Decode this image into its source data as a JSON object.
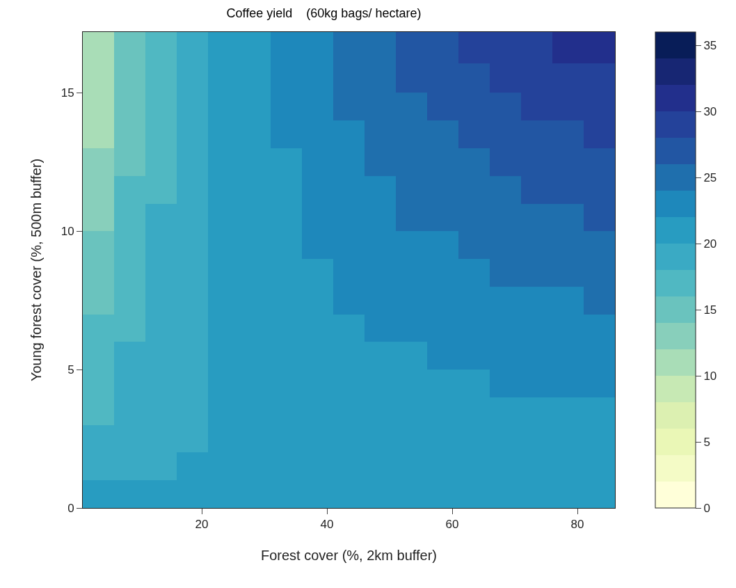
{
  "chart_data": {
    "type": "heatmap",
    "title": "Coffee yield    (60kg bags/ hectare)",
    "xlabel": "Forest cover (%, 2km buffer)",
    "ylabel": "Young forest cover (%, 500m buffer)",
    "x": [
      3.5,
      8.5,
      13.5,
      18.5,
      23.5,
      28.5,
      33.5,
      38.5,
      43.5,
      48.5,
      53.5,
      58.5,
      63.5,
      68.5,
      73.5,
      78.5,
      83.5
    ],
    "y": [
      16.65,
      15.5,
      14.5,
      13.5,
      12.5,
      11.5,
      10.5,
      9.5,
      8.5,
      7.5,
      6.5,
      5.5,
      4.5,
      3.5,
      2.5,
      1.5,
      0.5
    ],
    "cells": [
      [
        11,
        15,
        17,
        19,
        21,
        21,
        23,
        23,
        25,
        25,
        27,
        27,
        29,
        29,
        29,
        31,
        31
      ],
      [
        11,
        15,
        17,
        19,
        21,
        21,
        23,
        23,
        25,
        25,
        27,
        27,
        27,
        29,
        29,
        29,
        29
      ],
      [
        11,
        15,
        17,
        19,
        21,
        21,
        23,
        23,
        25,
        25,
        25,
        27,
        27,
        27,
        29,
        29,
        29
      ],
      [
        11,
        15,
        17,
        19,
        21,
        21,
        23,
        23,
        23,
        25,
        25,
        25,
        27,
        27,
        27,
        27,
        29
      ],
      [
        13,
        15,
        17,
        19,
        21,
        21,
        21,
        23,
        23,
        25,
        25,
        25,
        25,
        27,
        27,
        27,
        27
      ],
      [
        13,
        17,
        17,
        19,
        21,
        21,
        21,
        23,
        23,
        23,
        25,
        25,
        25,
        25,
        27,
        27,
        27
      ],
      [
        13,
        17,
        19,
        19,
        21,
        21,
        21,
        23,
        23,
        23,
        25,
        25,
        25,
        25,
        25,
        25,
        27
      ],
      [
        15,
        17,
        19,
        19,
        21,
        21,
        21,
        23,
        23,
        23,
        23,
        23,
        25,
        25,
        25,
        25,
        25
      ],
      [
        15,
        17,
        19,
        19,
        21,
        21,
        21,
        21,
        23,
        23,
        23,
        23,
        23,
        25,
        25,
        25,
        25
      ],
      [
        15,
        17,
        19,
        19,
        21,
        21,
        21,
        21,
        23,
        23,
        23,
        23,
        23,
        23,
        23,
        23,
        25
      ],
      [
        17,
        17,
        19,
        19,
        21,
        21,
        21,
        21,
        21,
        23,
        23,
        23,
        23,
        23,
        23,
        23,
        23
      ],
      [
        17,
        19,
        19,
        19,
        21,
        21,
        21,
        21,
        21,
        21,
        21,
        23,
        23,
        23,
        23,
        23,
        23
      ],
      [
        17,
        19,
        19,
        19,
        21,
        21,
        21,
        21,
        21,
        21,
        21,
        21,
        21,
        23,
        23,
        23,
        23
      ],
      [
        17,
        19,
        19,
        19,
        21,
        21,
        21,
        21,
        21,
        21,
        21,
        21,
        21,
        21,
        21,
        21,
        21
      ],
      [
        19,
        19,
        19,
        19,
        21,
        21,
        21,
        21,
        21,
        21,
        21,
        21,
        21,
        21,
        21,
        21,
        21
      ],
      [
        19,
        19,
        19,
        21,
        21,
        21,
        21,
        21,
        21,
        21,
        21,
        21,
        21,
        21,
        21,
        21,
        21
      ],
      [
        21,
        21,
        21,
        21,
        21,
        21,
        21,
        21,
        21,
        21,
        21,
        21,
        21,
        21,
        21,
        21,
        21
      ]
    ],
    "colors": [
      "#ffffd9",
      "#f4fbc6",
      "#eaf7b6",
      "#dcf0b1",
      "#c7e9b4",
      "#a9ddb7",
      "#88cfbb",
      "#6ac3be",
      "#50b8c2",
      "#3aaac4",
      "#289cc1",
      "#1e88bb",
      "#1f6fad",
      "#2256a3",
      "#24429a",
      "#222f8c",
      "#172673",
      "#081d58"
    ],
    "clim": [
      0,
      36
    ],
    "cticks": [
      0,
      5,
      10,
      15,
      20,
      25,
      30,
      35
    ],
    "xlim": [
      1,
      86
    ],
    "xticks": [
      20,
      40,
      60,
      80
    ],
    "ylim": [
      0,
      17.2
    ],
    "yticks": [
      0,
      5,
      10,
      15
    ]
  }
}
